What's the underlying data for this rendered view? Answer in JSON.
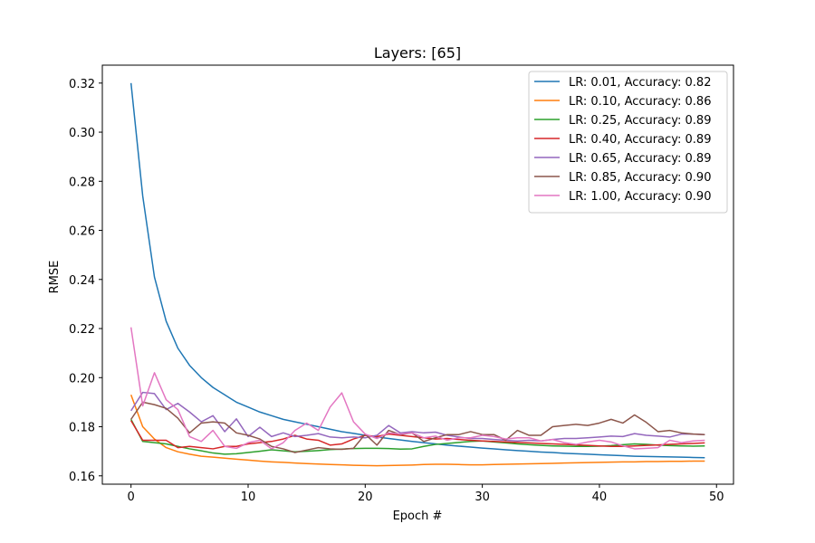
{
  "chart_data": {
    "type": "line",
    "title": "Layers: [65]",
    "xlabel": "Epoch #",
    "ylabel": "RMSE",
    "xlim": [
      -2.45,
      51.45
    ],
    "ylim": [
      0.1566,
      0.3273
    ],
    "xticks": [
      0,
      10,
      20,
      30,
      40,
      50
    ],
    "yticks": [
      0.16,
      0.18,
      0.2,
      0.22,
      0.24,
      0.26,
      0.28,
      0.3,
      0.32
    ],
    "ytick_labels": [
      "0.16",
      "0.18",
      "0.20",
      "0.22",
      "0.24",
      "0.26",
      "0.28",
      "0.30",
      "0.32"
    ],
    "grid": false,
    "legend_position": "upper right",
    "x": [
      0,
      1,
      2,
      3,
      4,
      5,
      6,
      7,
      8,
      9,
      10,
      11,
      12,
      13,
      14,
      15,
      16,
      17,
      18,
      19,
      20,
      21,
      22,
      23,
      24,
      25,
      26,
      27,
      28,
      29,
      30,
      31,
      32,
      33,
      34,
      35,
      36,
      37,
      38,
      39,
      40,
      41,
      42,
      43,
      44,
      45,
      46,
      47,
      48,
      49
    ],
    "series": [
      {
        "name": "LR: 0.01, Accuracy: 0.82",
        "color": "#1f77b4",
        "values": [
          0.32,
          0.274,
          0.241,
          0.223,
          0.212,
          0.205,
          0.2,
          0.196,
          0.193,
          0.19,
          0.188,
          0.186,
          0.1845,
          0.183,
          0.182,
          0.181,
          0.18,
          0.179,
          0.178,
          0.1773,
          0.1765,
          0.1758,
          0.1752,
          0.1746,
          0.174,
          0.1735,
          0.173,
          0.1725,
          0.1721,
          0.1717,
          0.1713,
          0.171,
          0.1706,
          0.1703,
          0.17,
          0.1697,
          0.1695,
          0.1692,
          0.169,
          0.1688,
          0.1686,
          0.1684,
          0.1682,
          0.168,
          0.1679,
          0.1678,
          0.1677,
          0.1676,
          0.1675,
          0.1674
        ]
      },
      {
        "name": "LR: 0.10, Accuracy: 0.86",
        "color": "#ff7f0e",
        "values": [
          0.193,
          0.18,
          0.175,
          0.1715,
          0.1698,
          0.1688,
          0.168,
          0.1676,
          0.1672,
          0.1668,
          0.1664,
          0.166,
          0.1657,
          0.1655,
          0.1652,
          0.165,
          0.1648,
          0.1646,
          0.1645,
          0.1643,
          0.1642,
          0.1641,
          0.1642,
          0.1643,
          0.1644,
          0.1646,
          0.1647,
          0.1647,
          0.1646,
          0.1645,
          0.1645,
          0.1646,
          0.1647,
          0.1648,
          0.1649,
          0.165,
          0.1651,
          0.1652,
          0.1653,
          0.1654,
          0.1655,
          0.1656,
          0.1657,
          0.1657,
          0.1658,
          0.1658,
          0.1659,
          0.1659,
          0.166,
          0.166
        ]
      },
      {
        "name": "LR: 0.25, Accuracy: 0.89",
        "color": "#2ca02c",
        "values": [
          0.183,
          0.174,
          0.1735,
          0.173,
          0.172,
          0.171,
          0.1702,
          0.1693,
          0.1688,
          0.169,
          0.1695,
          0.17,
          0.1706,
          0.1702,
          0.1698,
          0.17,
          0.1703,
          0.1707,
          0.1709,
          0.1711,
          0.1712,
          0.1712,
          0.1711,
          0.1709,
          0.171,
          0.172,
          0.1728,
          0.1732,
          0.1736,
          0.174,
          0.1742,
          0.1738,
          0.1734,
          0.173,
          0.1727,
          0.1724,
          0.1722,
          0.1721,
          0.172,
          0.172,
          0.1721,
          0.1723,
          0.1727,
          0.173,
          0.1728,
          0.1725,
          0.1723,
          0.1722,
          0.1721,
          0.1722
        ]
      },
      {
        "name": "LR: 0.40, Accuracy: 0.89",
        "color": "#d62728",
        "values": [
          0.1825,
          0.1745,
          0.1745,
          0.1745,
          0.1715,
          0.172,
          0.1715,
          0.171,
          0.172,
          0.172,
          0.173,
          0.1735,
          0.174,
          0.175,
          0.1765,
          0.175,
          0.1745,
          0.1725,
          0.173,
          0.175,
          0.1765,
          0.176,
          0.177,
          0.1765,
          0.176,
          0.1755,
          0.175,
          0.1752,
          0.1748,
          0.1745,
          0.1742,
          0.174,
          0.1738,
          0.1736,
          0.1734,
          0.1732,
          0.173,
          0.1728,
          0.1726,
          0.1724,
          0.1722,
          0.172,
          0.172,
          0.1722,
          0.1724,
          0.1726,
          0.1728,
          0.173,
          0.1732,
          0.1734
        ]
      },
      {
        "name": "LR: 0.65, Accuracy: 0.89",
        "color": "#9467bd",
        "values": [
          0.1865,
          0.194,
          0.1935,
          0.187,
          0.1895,
          0.186,
          0.182,
          0.1845,
          0.178,
          0.1832,
          0.176,
          0.1798,
          0.176,
          0.1775,
          0.176,
          0.1765,
          0.1772,
          0.1758,
          0.1755,
          0.1758,
          0.1755,
          0.1765,
          0.1805,
          0.1775,
          0.178,
          0.1775,
          0.1778,
          0.1765,
          0.1758,
          0.1752,
          0.1752,
          0.1748,
          0.1745,
          0.1742,
          0.1745,
          0.1742,
          0.1748,
          0.1752,
          0.1752,
          0.1755,
          0.1758,
          0.1762,
          0.176,
          0.1772,
          0.1765,
          0.1762,
          0.1758,
          0.177,
          0.177,
          0.1768
        ]
      },
      {
        "name": "LR: 0.85, Accuracy: 0.90",
        "color": "#8c564b",
        "values": [
          0.183,
          0.19,
          0.189,
          0.1875,
          0.1835,
          0.1775,
          0.1815,
          0.182,
          0.1815,
          0.1775,
          0.1765,
          0.175,
          0.172,
          0.171,
          0.1695,
          0.1705,
          0.1715,
          0.171,
          0.1708,
          0.1712,
          0.177,
          0.1725,
          0.1785,
          0.1768,
          0.1775,
          0.174,
          0.1755,
          0.1768,
          0.1768,
          0.178,
          0.1768,
          0.1768,
          0.1745,
          0.1785,
          0.1765,
          0.1765,
          0.18,
          0.1805,
          0.181,
          0.1805,
          0.1815,
          0.183,
          0.1815,
          0.1848,
          0.1818,
          0.178,
          0.1785,
          0.1775,
          0.177,
          0.1768
        ]
      },
      {
        "name": "LR: 1.00, Accuracy: 0.90",
        "color": "#e377c2",
        "values": [
          0.2205,
          0.1885,
          0.202,
          0.191,
          0.187,
          0.176,
          0.174,
          0.1785,
          0.172,
          0.1712,
          0.1735,
          0.1745,
          0.171,
          0.1735,
          0.1785,
          0.1815,
          0.1785,
          0.188,
          0.1938,
          0.182,
          0.177,
          0.1752,
          0.1775,
          0.177,
          0.1775,
          0.1755,
          0.1762,
          0.1745,
          0.1755,
          0.1755,
          0.1765,
          0.176,
          0.175,
          0.1755,
          0.1755,
          0.1742,
          0.1748,
          0.1735,
          0.1728,
          0.1738,
          0.1745,
          0.1738,
          0.1722,
          0.171,
          0.1712,
          0.1715,
          0.1745,
          0.1735,
          0.1742,
          0.1745
        ]
      }
    ]
  }
}
